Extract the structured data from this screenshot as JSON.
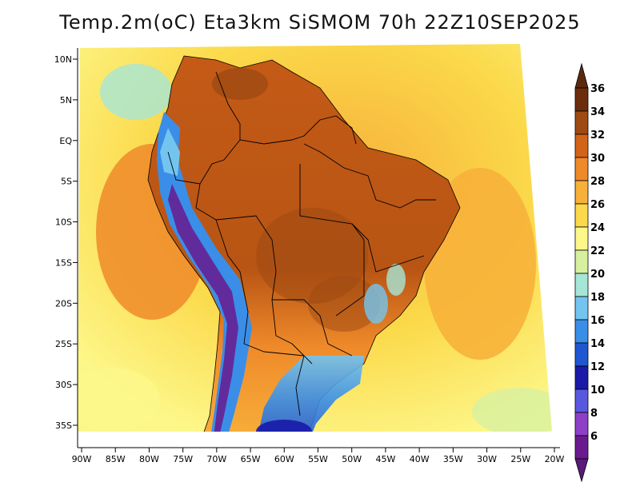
{
  "title": "Temp.2m(oC) Eta3km SiSMOM 70h 22Z10SEP2025",
  "y_axis": {
    "ticks": [
      {
        "lat": 10,
        "label": "10N"
      },
      {
        "lat": 5,
        "label": "5N"
      },
      {
        "lat": 0,
        "label": "EQ"
      },
      {
        "lat": -5,
        "label": "5S"
      },
      {
        "lat": -10,
        "label": "10S"
      },
      {
        "lat": -15,
        "label": "15S"
      },
      {
        "lat": -20,
        "label": "20S"
      },
      {
        "lat": -25,
        "label": "25S"
      },
      {
        "lat": -30,
        "label": "30S"
      },
      {
        "lat": -35,
        "label": "35S"
      }
    ]
  },
  "x_axis": {
    "ticks": [
      {
        "lon": -90,
        "label": "90W"
      },
      {
        "lon": -85,
        "label": "85W"
      },
      {
        "lon": -80,
        "label": "80W"
      },
      {
        "lon": -75,
        "label": "75W"
      },
      {
        "lon": -70,
        "label": "70W"
      },
      {
        "lon": -65,
        "label": "65W"
      },
      {
        "lon": -60,
        "label": "60W"
      },
      {
        "lon": -55,
        "label": "55W"
      },
      {
        "lon": -50,
        "label": "50W"
      },
      {
        "lon": -45,
        "label": "45W"
      },
      {
        "lon": -40,
        "label": "40W"
      },
      {
        "lon": -35,
        "label": "35W"
      },
      {
        "lon": -30,
        "label": "30W"
      },
      {
        "lon": -25,
        "label": "25W"
      },
      {
        "lon": -20,
        "label": "20W"
      }
    ]
  },
  "colorbar": {
    "bins": [
      {
        "label": "36",
        "color": "#6b2d0c"
      },
      {
        "label": "34",
        "color": "#9e4a12"
      },
      {
        "label": "32",
        "color": "#d2641a"
      },
      {
        "label": "30",
        "color": "#ef8a2a"
      },
      {
        "label": "28",
        "color": "#f7b13a"
      },
      {
        "label": "26",
        "color": "#fbd94a"
      },
      {
        "label": "24",
        "color": "#fdf78a"
      },
      {
        "label": "22",
        "color": "#d7f0a0"
      },
      {
        "label": "20",
        "color": "#a6e6d6"
      },
      {
        "label": "18",
        "color": "#73c5f0"
      },
      {
        "label": "16",
        "color": "#3a8ee8"
      },
      {
        "label": "14",
        "color": "#1f56d2"
      },
      {
        "label": "12",
        "color": "#1a1aa8"
      },
      {
        "label": "10",
        "color": "#5a57e0"
      },
      {
        "label": "8",
        "color": "#8e3fc8"
      },
      {
        "label": "6",
        "color": "#6a1a8e"
      }
    ],
    "top_arrow_color": "#5a2a10",
    "bottom_arrow_color": "#5a1a7a"
  },
  "colors": {
    "ocean_warm": "#f7b13a",
    "ocean_mid": "#fbd94a",
    "ocean_cool": "#fdf78a",
    "land_hot": "#d2641a",
    "land_very_hot": "#9e4a12",
    "andes": "#3a8ee8",
    "andes_cold": "#5a1a7a",
    "outline": "#000000"
  }
}
